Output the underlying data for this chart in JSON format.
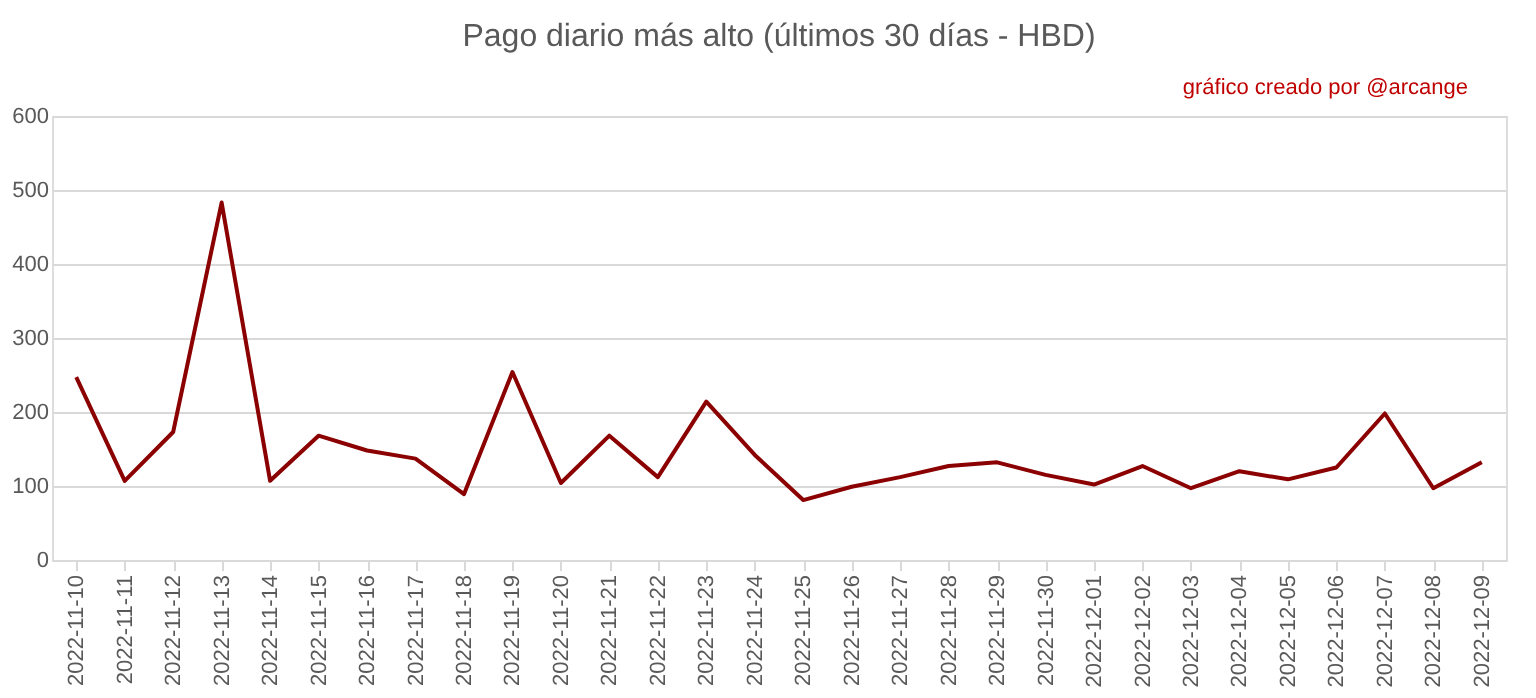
{
  "chart_data": {
    "type": "line",
    "title": "Pago diario más alto (últimos 30 días - HBD)",
    "annotations": [
      "gráfico creado por @arcange"
    ],
    "categories": [
      "2022-11-10",
      "2022-11-11",
      "2022-11-12",
      "2022-11-13",
      "2022-11-14",
      "2022-11-15",
      "2022-11-16",
      "2022-11-17",
      "2022-11-18",
      "2022-11-19",
      "2022-11-20",
      "2022-11-21",
      "2022-11-22",
      "2022-11-23",
      "2022-11-24",
      "2022-11-25",
      "2022-11-26",
      "2022-11-27",
      "2022-11-28",
      "2022-11-29",
      "2022-11-30",
      "2022-12-01",
      "2022-12-02",
      "2022-12-03",
      "2022-12-04",
      "2022-12-05",
      "2022-12-06",
      "2022-12-07",
      "2022-12-08",
      "2022-12-09"
    ],
    "series": [
      {
        "color": "#8b0000",
        "values": [
          247,
          107,
          173,
          483,
          107,
          168,
          148,
          137,
          89,
          254,
          104,
          168,
          112,
          214,
          142,
          81,
          99,
          112,
          127,
          132,
          115,
          102,
          127,
          97,
          120,
          109,
          125,
          198,
          97,
          132
        ]
      }
    ],
    "ylim": [
      0,
      600
    ],
    "yticks": [
      0,
      100,
      200,
      300,
      400,
      500,
      600
    ],
    "grid": "y",
    "legend": false,
    "marker": "none",
    "line_style": "solid"
  }
}
